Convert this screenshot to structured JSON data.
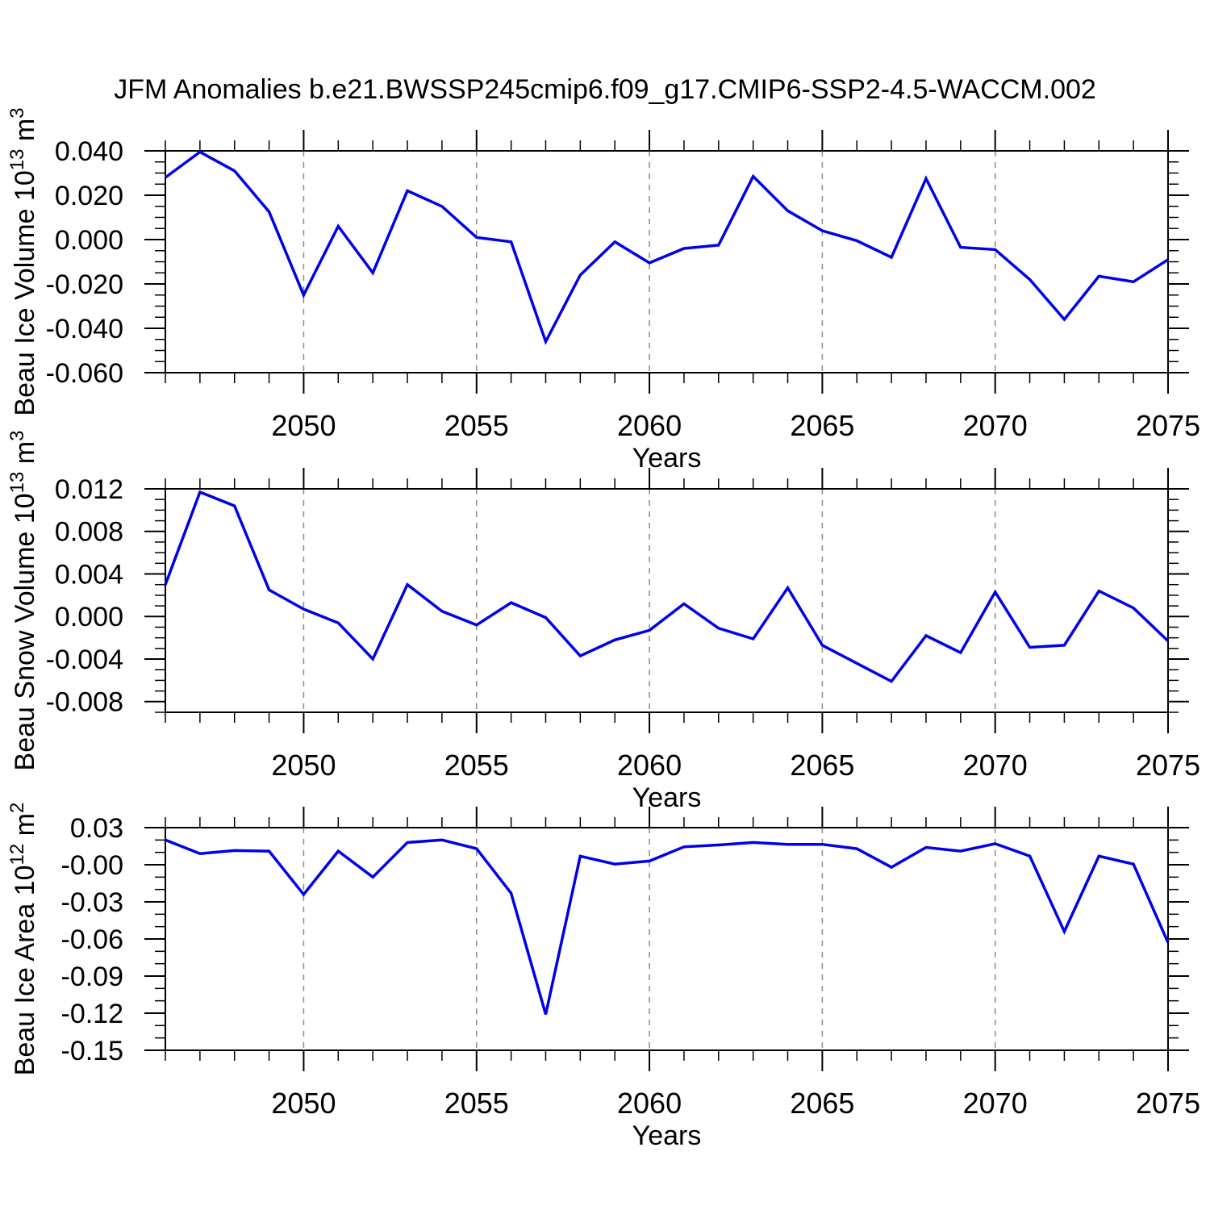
{
  "title": "JFM Anomalies b.e21.BWSSP245cmip6.f09_g17.CMIP6-SSP2-4.5-WACCM.002",
  "colors": {
    "line": "#0000EB",
    "grid": "#8C8C8C",
    "axis": "#000000",
    "background": "#FFFFFF"
  },
  "x_axis": {
    "label": "Years",
    "range": [
      2046,
      2075
    ],
    "major_ticks": [
      2050,
      2055,
      2060,
      2065,
      2070,
      2075
    ],
    "major_tick_labels": [
      "2050",
      "2055",
      "2060",
      "2065",
      "2070",
      "2075"
    ],
    "minor_tick_step": 1,
    "gridline_years": [
      2050,
      2055,
      2060,
      2065,
      2070
    ]
  },
  "chart_data": [
    {
      "type": "line",
      "name": "ice-volume",
      "ylabel": "Beau Ice Volume 10^13 m^3",
      "ylabel_parts": [
        {
          "t": "Beau Ice Volume 10"
        },
        {
          "t": "13",
          "sup": true
        },
        {
          "t": " m"
        },
        {
          "t": "3",
          "sup": true
        }
      ],
      "xlabel": "Years",
      "ylim": [
        -0.06,
        0.04
      ],
      "yticks": {
        "values": [
          0.04,
          0.02,
          0.0,
          -0.02,
          -0.04,
          -0.06
        ],
        "labels": [
          "0.040",
          "0.020",
          "0.000",
          "-0.020",
          "-0.040",
          "-0.060"
        ],
        "minor_step": 0.005
      },
      "x": [
        2046,
        2047,
        2048,
        2049,
        2050,
        2051,
        2052,
        2053,
        2054,
        2055,
        2056,
        2057,
        2058,
        2059,
        2060,
        2061,
        2062,
        2063,
        2064,
        2065,
        2066,
        2067,
        2068,
        2069,
        2070,
        2071,
        2072,
        2073,
        2074,
        2075
      ],
      "values": [
        0.028,
        0.0395,
        0.031,
        0.0125,
        -0.025,
        0.006,
        -0.015,
        0.022,
        0.015,
        0.001,
        -0.001,
        -0.046,
        -0.016,
        -0.001,
        -0.0105,
        -0.004,
        -0.0025,
        0.0285,
        0.013,
        0.004,
        -0.0005,
        -0.008,
        0.0275,
        -0.0035,
        -0.0045,
        -0.018,
        -0.036,
        -0.0165,
        -0.019,
        -0.009
      ]
    },
    {
      "type": "line",
      "name": "snow-volume",
      "ylabel": "Beau Snow Volume 10^13 m^3",
      "ylabel_parts": [
        {
          "t": "Beau Snow Volume 10"
        },
        {
          "t": "13",
          "sup": true
        },
        {
          "t": " m"
        },
        {
          "t": "3",
          "sup": true
        }
      ],
      "xlabel": "Years",
      "ylim": [
        -0.009,
        0.012
      ],
      "yticks": {
        "values": [
          0.012,
          0.008,
          0.004,
          0.0,
          -0.004,
          -0.008
        ],
        "labels": [
          "0.012",
          "0.008",
          "0.004",
          "0.000",
          "-0.004",
          "-0.008"
        ],
        "minor_step": 0.001
      },
      "x": [
        2046,
        2047,
        2048,
        2049,
        2050,
        2051,
        2052,
        2053,
        2054,
        2055,
        2056,
        2057,
        2058,
        2059,
        2060,
        2061,
        2062,
        2063,
        2064,
        2065,
        2066,
        2067,
        2068,
        2069,
        2070,
        2071,
        2072,
        2073,
        2074,
        2075
      ],
      "values": [
        0.003,
        0.0117,
        0.0104,
        0.0025,
        0.0007,
        -0.0006,
        -0.004,
        0.003,
        0.0005,
        -0.0008,
        0.0013,
        -0.0001,
        -0.0037,
        -0.0022,
        -0.0013,
        0.0012,
        -0.0011,
        -0.0021,
        0.0027,
        -0.0027,
        -0.0044,
        -0.0061,
        -0.0018,
        -0.0034,
        0.0023,
        -0.0029,
        -0.0027,
        0.0024,
        0.0008,
        -0.0023
      ]
    },
    {
      "type": "line",
      "name": "ice-area",
      "ylabel": "Beau Ice Area 10^12 m^2",
      "ylabel_parts": [
        {
          "t": "Beau Ice Area 10"
        },
        {
          "t": "12",
          "sup": true
        },
        {
          "t": " m"
        },
        {
          "t": "2",
          "sup": true
        }
      ],
      "xlabel": "Years",
      "ylim": [
        -0.15,
        0.03
      ],
      "yticks": {
        "values": [
          0.03,
          0.0,
          -0.03,
          -0.06,
          -0.09,
          -0.12,
          -0.15
        ],
        "labels": [
          "0.03",
          "-0.00",
          "-0.03",
          "-0.06",
          "-0.09",
          "-0.12",
          "-0.15"
        ],
        "minor_step": 0.01
      },
      "x": [
        2046,
        2047,
        2048,
        2049,
        2050,
        2051,
        2052,
        2053,
        2054,
        2055,
        2056,
        2057,
        2058,
        2059,
        2060,
        2061,
        2062,
        2063,
        2064,
        2065,
        2066,
        2067,
        2068,
        2069,
        2070,
        2071,
        2072,
        2073,
        2074,
        2075
      ],
      "values": [
        0.02,
        0.009,
        0.0115,
        0.011,
        -0.024,
        0.011,
        -0.01,
        0.018,
        0.02,
        0.013,
        -0.023,
        -0.121,
        0.007,
        0.0005,
        0.003,
        0.0145,
        0.016,
        0.018,
        0.0165,
        0.0165,
        0.013,
        -0.002,
        0.014,
        0.011,
        0.017,
        0.007,
        -0.054,
        0.007,
        0.0005,
        -0.063
      ]
    }
  ]
}
